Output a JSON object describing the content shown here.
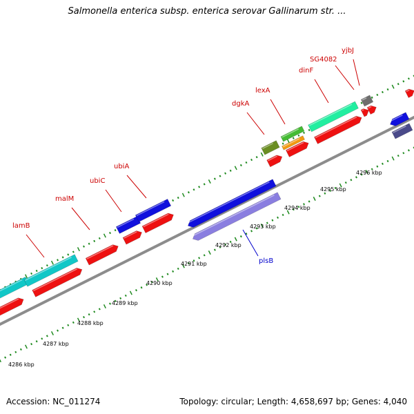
{
  "title": "Salmonella enterica subsp. enterica serovar Gallinarum str. ...",
  "footer": {
    "accession": "Accession: NC_011274",
    "stats": "Topology: circular; Length: 4,658,697 bp; Genes: 4,040"
  },
  "colors": {
    "backbone": "#8c8c8c",
    "tick": "#1f8a1f",
    "forward_label": "#cc0000",
    "reverse_label": "#0000cc",
    "red": "#ee1111",
    "cyan": "#11c7c7",
    "blue": "#1010dd",
    "lightblue": "#8a7ee0",
    "olive": "#6b8e23",
    "green": "#44bb33",
    "orange": "#f39a11",
    "mint": "#22eea0",
    "gray": "#6e6e6e",
    "navy": "#4a4a8a"
  },
  "scale_labels": [
    "4286 kbp",
    "4287 kbp",
    "4288 kbp",
    "4289 kbp",
    "4290 kbp",
    "4291 kbp",
    "4292 kbp",
    "4293 kbp",
    "4294 kbp",
    "4295 kbp",
    "4296 kbp"
  ],
  "gene_labels": [
    {
      "text": "lamB",
      "strand": "forward"
    },
    {
      "text": "malM",
      "strand": "forward"
    },
    {
      "text": "ubiC",
      "strand": "forward"
    },
    {
      "text": "ubiA",
      "strand": "forward"
    },
    {
      "text": "dgkA",
      "strand": "forward"
    },
    {
      "text": "lexA",
      "strand": "forward"
    },
    {
      "text": "dinF",
      "strand": "forward"
    },
    {
      "text": "SG4082",
      "strand": "forward"
    },
    {
      "text": "yjbJ",
      "strand": "forward"
    },
    {
      "text": "plsB",
      "strand": "reverse"
    }
  ]
}
